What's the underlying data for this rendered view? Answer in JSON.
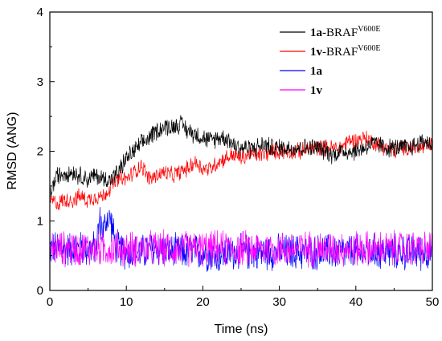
{
  "chart_data": {
    "type": "line",
    "xlabel": "Time (ns)",
    "ylabel": "RMSD (ANG)",
    "xlim": [
      0,
      50
    ],
    "ylim": [
      0,
      4
    ],
    "xticks": [
      "0",
      "10",
      "20",
      "30",
      "40",
      "50"
    ],
    "yticks": [
      "0",
      "1",
      "2",
      "3",
      "4"
    ],
    "grid": false,
    "legend_position": "top-right",
    "series": [
      {
        "name": "1a-BRAFV600E",
        "legend_bold": "1a",
        "legend_rest": "-BRAF",
        "legend_sup": "V600E",
        "color": "#000000",
        "x": [
          0,
          1,
          2,
          3,
          4,
          5,
          6,
          7,
          8,
          9,
          10,
          11,
          12,
          13,
          14,
          15,
          16,
          17,
          18,
          19,
          20,
          21,
          22,
          23,
          24,
          25,
          26,
          27,
          28,
          29,
          30,
          31,
          32,
          33,
          34,
          35,
          36,
          37,
          38,
          39,
          40,
          41,
          42,
          43,
          44,
          45,
          46,
          47,
          48,
          49,
          50
        ],
        "y": [
          1.4,
          1.65,
          1.7,
          1.7,
          1.65,
          1.6,
          1.65,
          1.6,
          1.6,
          1.7,
          1.9,
          2.0,
          2.1,
          2.2,
          2.3,
          2.35,
          2.35,
          2.4,
          2.3,
          2.25,
          2.2,
          2.15,
          2.2,
          2.2,
          2.1,
          2.05,
          2.05,
          2.05,
          2.1,
          2.05,
          2.05,
          2.05,
          2.05,
          2.05,
          2.05,
          2.05,
          2.0,
          1.95,
          2.0,
          2.0,
          2.0,
          2.05,
          2.1,
          2.1,
          2.05,
          2.05,
          2.05,
          2.05,
          2.1,
          2.15,
          2.1
        ],
        "noise": 0.16
      },
      {
        "name": "1v-BRAFV600E",
        "legend_bold": "1v",
        "legend_rest": "-BRAF",
        "legend_sup": "V600E",
        "color": "#ff0000",
        "x": [
          0,
          1,
          2,
          3,
          4,
          5,
          6,
          7,
          8,
          9,
          10,
          11,
          12,
          13,
          14,
          15,
          16,
          17,
          18,
          19,
          20,
          21,
          22,
          23,
          24,
          25,
          26,
          27,
          28,
          29,
          30,
          31,
          32,
          33,
          34,
          35,
          36,
          37,
          38,
          39,
          40,
          41,
          42,
          43,
          44,
          45,
          46,
          47,
          48,
          49,
          50
        ],
        "y": [
          1.3,
          1.25,
          1.3,
          1.3,
          1.35,
          1.3,
          1.35,
          1.35,
          1.5,
          1.6,
          1.6,
          1.7,
          1.8,
          1.6,
          1.65,
          1.7,
          1.65,
          1.7,
          1.75,
          1.85,
          1.75,
          1.75,
          1.85,
          1.9,
          1.95,
          1.9,
          1.95,
          1.95,
          1.95,
          2.0,
          2.0,
          2.0,
          2.0,
          2.0,
          2.05,
          2.05,
          2.05,
          2.05,
          2.05,
          2.15,
          2.15,
          2.2,
          2.15,
          2.1,
          2.05,
          2.0,
          2.05,
          2.05,
          2.05,
          2.05,
          2.1
        ],
        "noise": 0.14
      },
      {
        "name": "1a",
        "legend_bold": "1a",
        "legend_rest": "",
        "legend_sup": "",
        "color": "#0000ff",
        "x": [
          0,
          1,
          2,
          3,
          4,
          5,
          6,
          6.5,
          7,
          7.5,
          8,
          8.5,
          9,
          10,
          12,
          14,
          16,
          18,
          20,
          22,
          24,
          26,
          28,
          30,
          32,
          34,
          36,
          38,
          40,
          42,
          44,
          46,
          48,
          50
        ],
        "y": [
          0.6,
          0.6,
          0.6,
          0.6,
          0.6,
          0.6,
          0.6,
          1.0,
          0.85,
          1.05,
          1.0,
          0.7,
          0.6,
          0.55,
          0.55,
          0.6,
          0.55,
          0.55,
          0.55,
          0.5,
          0.55,
          0.55,
          0.55,
          0.55,
          0.55,
          0.55,
          0.55,
          0.55,
          0.55,
          0.55,
          0.55,
          0.55,
          0.55,
          0.55
        ],
        "noise": 0.3
      },
      {
        "name": "1v",
        "legend_bold": "1v",
        "legend_rest": "",
        "legend_sup": "",
        "color": "#ff00ff",
        "x": [
          0,
          5,
          10,
          15,
          20,
          25,
          30,
          35,
          40,
          45,
          50
        ],
        "y": [
          0.6,
          0.6,
          0.6,
          0.6,
          0.6,
          0.6,
          0.6,
          0.6,
          0.6,
          0.6,
          0.6
        ],
        "noise": 0.3
      }
    ]
  }
}
